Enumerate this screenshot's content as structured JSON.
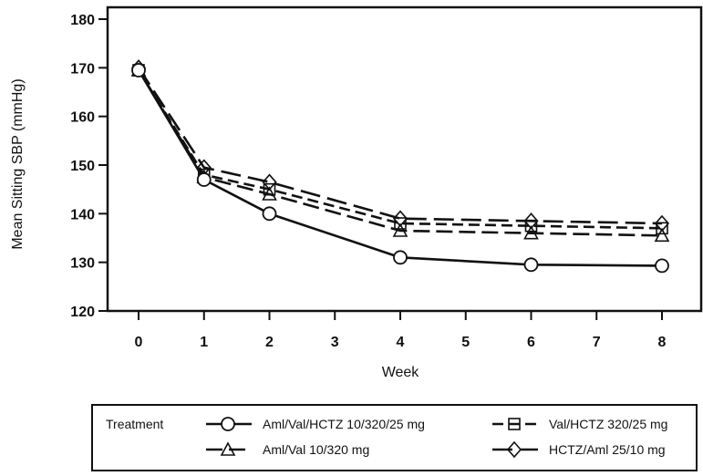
{
  "chart_data": {
    "type": "line",
    "title": "",
    "xlabel": "Week",
    "ylabel": "Mean Sitting SBP (mmHg)",
    "x": [
      0,
      1,
      2,
      4,
      6,
      8
    ],
    "xticks": [
      "0",
      "1",
      "2",
      "3",
      "4",
      "5",
      "6",
      "7",
      "8"
    ],
    "xlim": [
      -0.35,
      8.35
    ],
    "yticks": [
      "120",
      "130",
      "140",
      "150",
      "160",
      "170",
      "180"
    ],
    "ylim": [
      120,
      180
    ],
    "grid": false,
    "legend": {
      "title": "Treatment",
      "position": "bottom"
    },
    "series": [
      {
        "name": "Aml/Val/HCTZ 10/320/25  mg",
        "marker": "circle",
        "line": "solid",
        "values": [
          169.5,
          147,
          140,
          131,
          129.5,
          129.3
        ]
      },
      {
        "name": "Val/HCTZ 320/25 mg",
        "marker": "square",
        "line": "dashed",
        "values": [
          169.5,
          148,
          145,
          138,
          137.5,
          137
        ]
      },
      {
        "name": "Aml/Val 10/320 mg",
        "marker": "triangle",
        "line": "long-dash",
        "values": [
          169.5,
          147.5,
          144,
          136.5,
          136,
          135.5
        ]
      },
      {
        "name": "HCTZ/Aml 25/10 mg",
        "marker": "diamond",
        "line": "long-dash-dot",
        "values": [
          170,
          149.5,
          146.5,
          139,
          138.5,
          138
        ]
      }
    ],
    "colors": {
      "ink": "#111111",
      "background": "#ffffff"
    }
  }
}
